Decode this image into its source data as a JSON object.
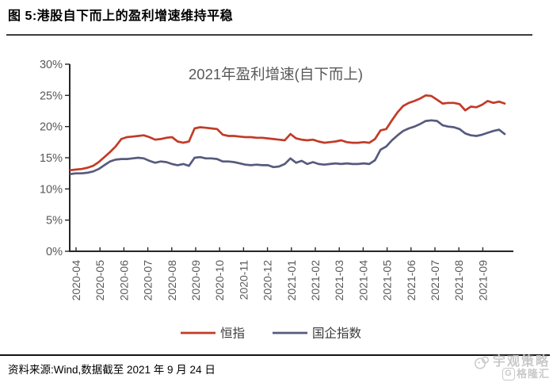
{
  "figure": {
    "title": "图 5:港股自下而上的盈利增速维持平稳",
    "source": "资料来源:Wind,数据截至 2021 年 9 月 24 日"
  },
  "watermark": {
    "brand": "宇观策略",
    "platform": "格隆汇",
    "logo_letter": "G"
  },
  "colors": {
    "hsi_red": "#C23B27",
    "soe_blue": "#565B7D",
    "axis": "#262626",
    "tick_text": "#595959",
    "chart_title": "#595959",
    "legend_text": "#3a3a3a"
  },
  "chart_data": {
    "type": "line",
    "title": "2021年盈利增速(自下而上)",
    "ylim": [
      0,
      30
    ],
    "y_ticks": [
      "30%",
      "25%",
      "20%",
      "15%",
      "10%",
      "5%",
      "0%"
    ],
    "grid": false,
    "legend_position": "bottom",
    "categories": [
      "2020-04",
      "2020-05",
      "2020-06",
      "2020-07",
      "2020-08",
      "2020-09",
      "2020-10",
      "2020-11",
      "2020-12",
      "2021-01",
      "2021-02",
      "2021-03",
      "2021-04",
      "2021-05",
      "2021-06",
      "2021-07",
      "2021-08",
      "2021-09"
    ],
    "x_note": "weekly data points, uniform spacing from 2020-04 through 2021-09-24",
    "series": [
      {
        "name": "恒指",
        "color": "#C23B27",
        "values": [
          13.0,
          13.1,
          13.2,
          13.4,
          13.7,
          14.3,
          15.1,
          15.9,
          16.8,
          18.0,
          18.3,
          18.4,
          18.5,
          18.6,
          18.3,
          17.9,
          18.0,
          18.2,
          18.3,
          17.6,
          17.4,
          17.6,
          19.7,
          19.9,
          19.8,
          19.7,
          19.6,
          18.7,
          18.5,
          18.5,
          18.4,
          18.3,
          18.3,
          18.2,
          18.2,
          18.1,
          18.0,
          17.9,
          17.8,
          18.8,
          18.1,
          17.9,
          17.8,
          17.9,
          17.6,
          17.4,
          17.5,
          17.6,
          17.8,
          17.5,
          17.4,
          17.4,
          17.5,
          17.4,
          18.0,
          19.4,
          19.6,
          21.0,
          22.3,
          23.3,
          23.8,
          24.1,
          24.5,
          25.0,
          24.9,
          24.3,
          23.7,
          23.8,
          23.8,
          23.6,
          22.6,
          23.2,
          23.1,
          23.5,
          24.1,
          23.8,
          24.0,
          23.7
        ]
      },
      {
        "name": "国企指数",
        "color": "#565B7D",
        "values": [
          12.4,
          12.5,
          12.5,
          12.6,
          12.8,
          13.2,
          13.8,
          14.4,
          14.7,
          14.8,
          14.8,
          14.9,
          15.0,
          14.9,
          14.5,
          14.2,
          14.4,
          14.3,
          14.0,
          13.8,
          14.0,
          13.7,
          15.0,
          15.1,
          14.9,
          14.9,
          14.8,
          14.4,
          14.4,
          14.3,
          14.1,
          13.9,
          13.8,
          13.9,
          13.8,
          13.8,
          13.5,
          13.6,
          14.0,
          14.9,
          14.2,
          14.5,
          14.0,
          14.3,
          14.0,
          13.9,
          14.0,
          14.1,
          14.0,
          14.1,
          14.0,
          14.0,
          14.1,
          14.0,
          14.6,
          16.3,
          16.8,
          17.8,
          18.6,
          19.3,
          19.7,
          20.0,
          20.4,
          20.9,
          21.0,
          20.9,
          20.2,
          20.0,
          19.9,
          19.6,
          18.9,
          18.6,
          18.5,
          18.7,
          19.0,
          19.3,
          19.5,
          18.8
        ]
      }
    ]
  }
}
